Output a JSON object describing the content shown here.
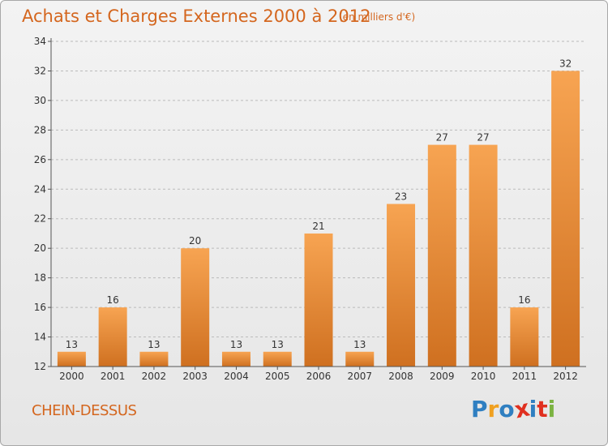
{
  "title": "Achats et Charges Externes 2000 à 2012",
  "subtitle": "(en milliers d'€)",
  "location": "CHEIN-DESSUS",
  "logo": {
    "text": "Proxiti",
    "letters": [
      {
        "ch": "P",
        "color": "#2f7fc1"
      },
      {
        "ch": "r",
        "color": "#f0a020"
      },
      {
        "ch": "o",
        "color": "#2f7fc1"
      },
      {
        "ch": "x",
        "color": "#e03020"
      },
      {
        "ch": "i",
        "color": "#2f7fc1"
      },
      {
        "ch": "t",
        "color": "#e03020"
      },
      {
        "ch": "i",
        "color": "#7cb342"
      }
    ]
  },
  "colors": {
    "title": "#d4661e",
    "bar_top": "#f7a452",
    "bar_bottom": "#cf7020",
    "grid": "#bbbbbb"
  },
  "chart_data": {
    "type": "bar",
    "categories": [
      "2000",
      "2001",
      "2002",
      "2003",
      "2004",
      "2005",
      "2006",
      "2007",
      "2008",
      "2009",
      "2010",
      "2011",
      "2012"
    ],
    "values": [
      13,
      16,
      13,
      20,
      13,
      13,
      21,
      13,
      23,
      27,
      27,
      16,
      32
    ],
    "ylim": [
      12,
      34
    ],
    "yticks": [
      12,
      14,
      16,
      18,
      20,
      22,
      24,
      26,
      28,
      30,
      32,
      34
    ],
    "grid": true,
    "data_labels": true
  }
}
